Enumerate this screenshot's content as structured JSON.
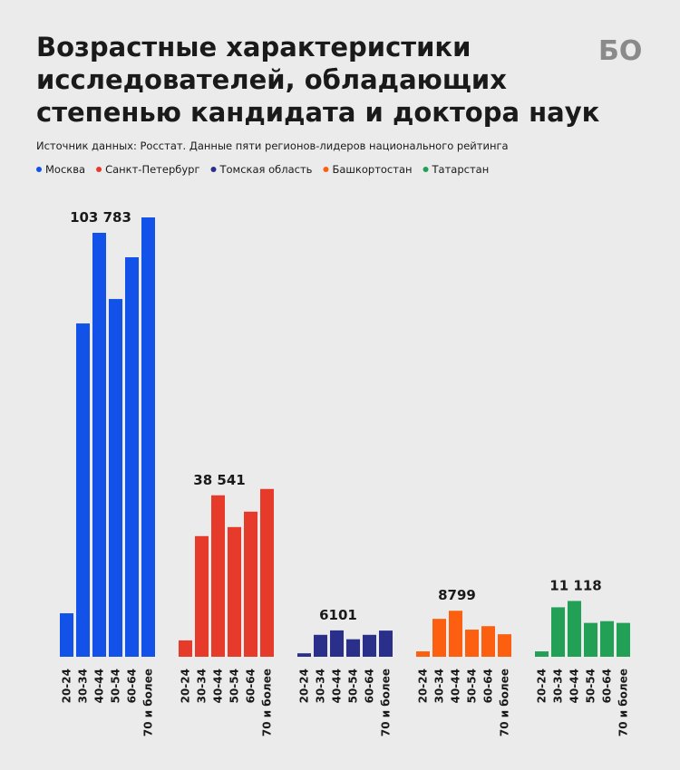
{
  "chart_data": {
    "type": "bar",
    "title": [
      "Возрастные характеристики",
      "исследователей, обладающих",
      "степенью кандидата и доктора наук"
    ],
    "subtitle": "Источник данных: Росстат. Данные пяти регионов-лидеров национального рейтинга",
    "logo": "БО",
    "categories": [
      "20-24",
      "30-34",
      "40-44",
      "50-54",
      "60-64",
      "70 и более"
    ],
    "series": [
      {
        "name": "Москва",
        "color": "#1352e8",
        "values": [
          2260,
          17320,
          22030,
          18590,
          20760,
          22830
        ],
        "total": 103783,
        "total_label": "103 783"
      },
      {
        "name": "Санкт-Петербург",
        "color": "#e63a2b",
        "values": [
          850,
          6270,
          8390,
          6740,
          7540,
          8720
        ],
        "total": 38541,
        "total_label": "38 541"
      },
      {
        "name": "Томская область",
        "color": "#2a2f8a",
        "values": [
          180,
          1140,
          1370,
          910,
          1140,
          1360
        ],
        "total": 6101,
        "total_label": "6101"
      },
      {
        "name": "Башкортостан",
        "color": "#fb5f0f",
        "values": [
          280,
          1970,
          2390,
          1410,
          1590,
          1170
        ],
        "total": 8799,
        "total_label": "8799"
      },
      {
        "name": "Татарстан",
        "color": "#22a055",
        "values": [
          280,
          2570,
          2900,
          1760,
          1850,
          1760
        ],
        "total": 11118,
        "total_label": "11 118"
      }
    ]
  }
}
